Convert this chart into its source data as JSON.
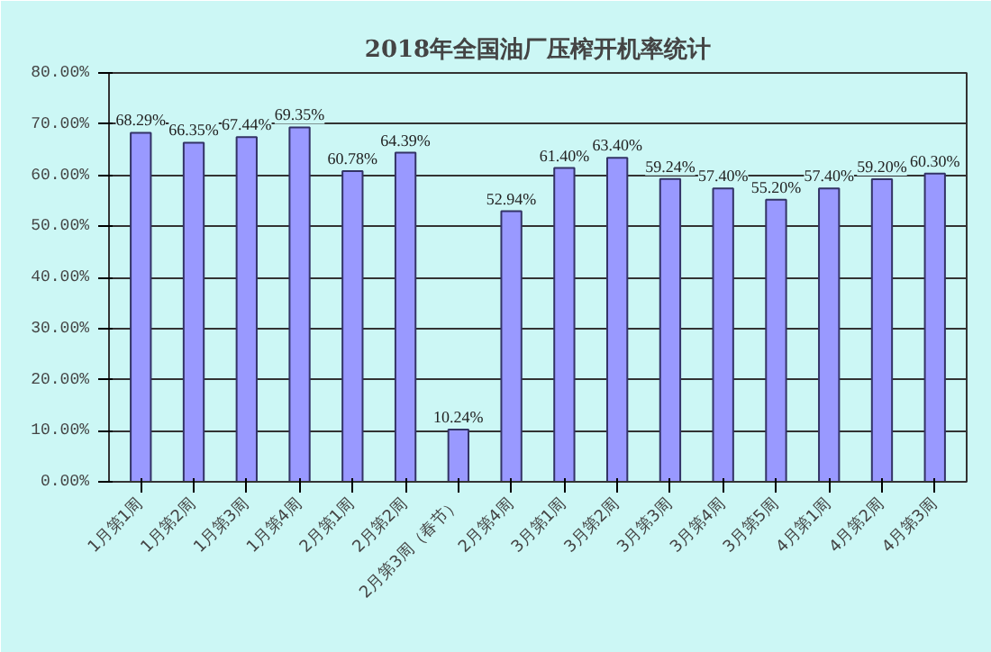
{
  "chart_data": {
    "type": "bar",
    "title": "2018年全国油厂压榨开机率统计",
    "categories": [
      "1月第1周",
      "1月第2周",
      "1月第3周",
      "1月第4周",
      "2月第1周",
      "2月第2周",
      "2月第3周（春节）",
      "2月第4周",
      "3月第1周",
      "3月第2周",
      "3月第3周",
      "3月第4周",
      "3月第5周",
      "4月第1周",
      "4月第2周",
      "4月第3周"
    ],
    "values": [
      68.29,
      66.35,
      67.44,
      69.35,
      60.78,
      64.39,
      10.24,
      52.94,
      61.4,
      63.4,
      59.24,
      57.4,
      55.2,
      57.4,
      59.2,
      60.3
    ],
    "value_labels": [
      "68.29%",
      "66.35%",
      "67.44%",
      "69.35%",
      "60.78%",
      "64.39%",
      "10.24%",
      "52.94%",
      "61.40%",
      "63.40%",
      "59.24%",
      "57.40%",
      "55.20%",
      "57.40%",
      "59.20%",
      "60.30%"
    ],
    "color": "#9999ff",
    "ylim": [
      0,
      80
    ],
    "yticks": [
      {
        "value": 0,
        "label": "0.00%"
      },
      {
        "value": 10,
        "label": "10.00%"
      },
      {
        "value": 20,
        "label": "20.00%"
      },
      {
        "value": 30,
        "label": "30.00%"
      },
      {
        "value": 40,
        "label": "40.00%"
      },
      {
        "value": 50,
        "label": "50.00%"
      },
      {
        "value": 60,
        "label": "60.00%"
      },
      {
        "value": 70,
        "label": "70.00%"
      },
      {
        "value": 80,
        "label": "80.00%"
      }
    ],
    "grid": "y"
  }
}
